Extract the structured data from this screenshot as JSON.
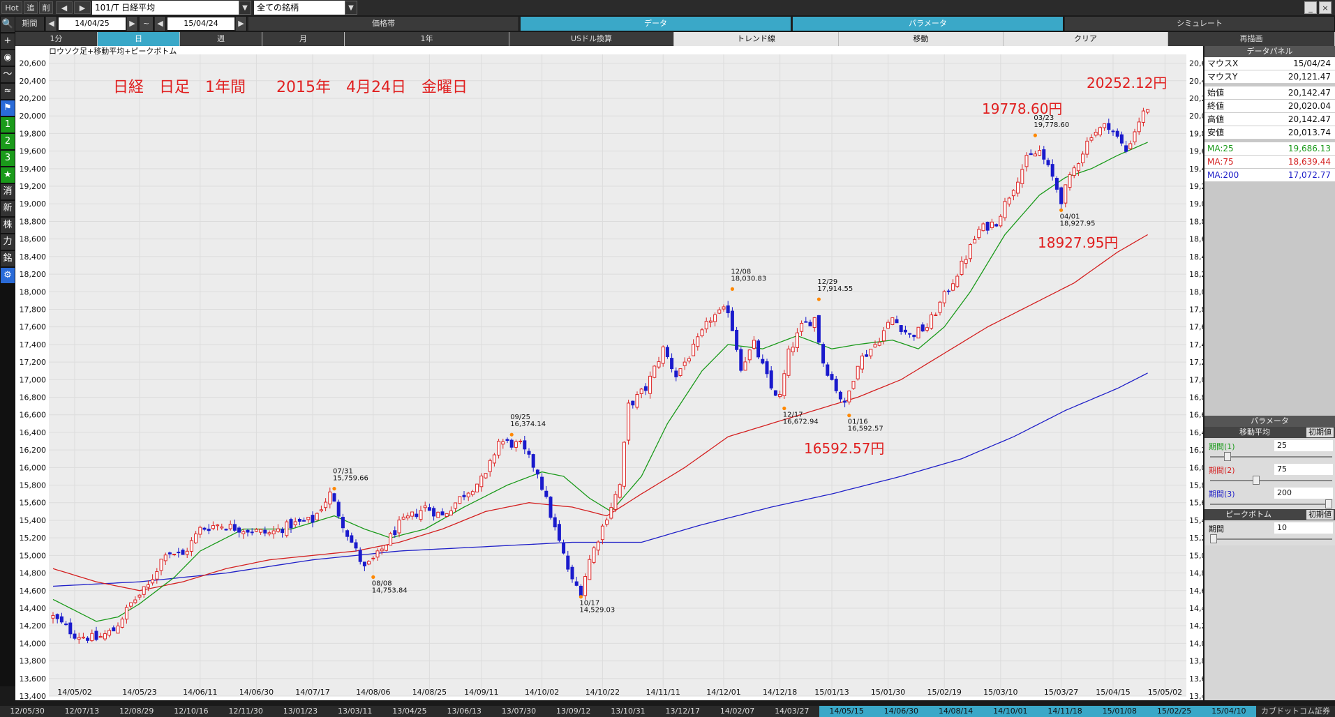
{
  "toolbar": {
    "hot_label": "Hot",
    "add_label": "追",
    "del_label": "削",
    "prev_icon": "prev-arrow-icon",
    "next_icon": "next-arrow-icon",
    "symbol_value": "101/T 日経平均",
    "group_value": "全ての銘柄"
  },
  "period_row": {
    "label": "期間",
    "start_date": "14/04/25",
    "tilde": "~",
    "end_date": "15/04/24",
    "tabs": [
      "価格帯",
      "データ",
      "パラメータ",
      "シミュレート"
    ]
  },
  "interval_row": {
    "buttons": [
      "1分",
      "日",
      "週",
      "月",
      "1年",
      "USドル換算",
      "トレンド線",
      "移動",
      "クリア",
      "再描画"
    ],
    "selected": "日"
  },
  "left_toolbar": {
    "items": [
      {
        "icon": "search-icon",
        "glyph": "🔍"
      },
      {
        "icon": "crosshair-icon",
        "glyph": "+"
      },
      {
        "icon": "camera-icon",
        "glyph": "◉"
      },
      {
        "icon": "line-chart-icon",
        "glyph": "〜"
      },
      {
        "icon": "multi-line-icon",
        "glyph": "≈"
      },
      {
        "icon": "flag-icon",
        "glyph": "⚑"
      },
      {
        "icon": "number-1-icon",
        "glyph": "1"
      },
      {
        "icon": "number-2-icon",
        "glyph": "2"
      },
      {
        "icon": "number-3-icon",
        "glyph": "3"
      },
      {
        "icon": "star-icon",
        "glyph": "★"
      },
      {
        "icon": "erase-icon",
        "glyph": "消"
      },
      {
        "icon": "new-icon",
        "glyph": "新"
      },
      {
        "icon": "stock-icon",
        "glyph": "株"
      },
      {
        "icon": "power-icon",
        "glyph": "力"
      },
      {
        "icon": "brand-icon",
        "glyph": "銘"
      },
      {
        "icon": "gear-icon",
        "glyph": "⚙"
      }
    ]
  },
  "chart_header": "ロウソク足+移動平均+ピークボトム",
  "annotations": {
    "title": "日経　日足　1年間　　2015年　4月24日　金曜日",
    "high_label": "20252.12円",
    "peak_label": "19778.60円",
    "low1_label": "18927.95円",
    "low2_label": "16592.57円"
  },
  "chart_data": {
    "type": "candlestick",
    "ylim": [
      13400,
      20700
    ],
    "yticks": [
      13400,
      13600,
      13800,
      14000,
      14200,
      14400,
      14600,
      14800,
      15000,
      15200,
      15400,
      15600,
      15800,
      16000,
      16200,
      16400,
      16600,
      16800,
      17000,
      17200,
      17400,
      17600,
      17800,
      18000,
      18200,
      18400,
      18600,
      18800,
      19000,
      19200,
      19400,
      19600,
      19800,
      20000,
      20200,
      20400,
      20600
    ],
    "xticks": [
      {
        "label": "14/05/02",
        "i": 5
      },
      {
        "label": "14/05/23",
        "i": 20
      },
      {
        "label": "14/06/11",
        "i": 34
      },
      {
        "label": "14/06/30",
        "i": 47
      },
      {
        "label": "14/07/17",
        "i": 60
      },
      {
        "label": "14/08/06",
        "i": 74
      },
      {
        "label": "14/08/25",
        "i": 87
      },
      {
        "label": "14/09/11",
        "i": 99
      },
      {
        "label": "14/10/02",
        "i": 113
      },
      {
        "label": "14/10/22",
        "i": 127
      },
      {
        "label": "14/11/11",
        "i": 141
      },
      {
        "label": "14/12/01",
        "i": 155
      },
      {
        "label": "14/12/18",
        "i": 168
      },
      {
        "label": "15/01/13",
        "i": 180
      },
      {
        "label": "15/01/30",
        "i": 193
      },
      {
        "label": "15/02/19",
        "i": 206
      },
      {
        "label": "15/03/10",
        "i": 219
      },
      {
        "label": "15/03/27",
        "i": 233
      },
      {
        "label": "15/04/15",
        "i": 245
      },
      {
        "label": "15/05/02",
        "i": 257
      }
    ],
    "n_bars": 262,
    "anchors": [
      [
        0,
        14300
      ],
      [
        5,
        14100
      ],
      [
        10,
        14050
      ],
      [
        14,
        14150
      ],
      [
        18,
        14450
      ],
      [
        22,
        14650
      ],
      [
        26,
        15050
      ],
      [
        30,
        15000
      ],
      [
        34,
        15300
      ],
      [
        38,
        15350
      ],
      [
        44,
        15300
      ],
      [
        50,
        15250
      ],
      [
        55,
        15350
      ],
      [
        60,
        15400
      ],
      [
        64,
        15700
      ],
      [
        68,
        15250
      ],
      [
        72,
        14850
      ],
      [
        75,
        15000
      ],
      [
        80,
        15350
      ],
      [
        86,
        15550
      ],
      [
        90,
        15450
      ],
      [
        95,
        15700
      ],
      [
        100,
        15900
      ],
      [
        103,
        16300
      ],
      [
        108,
        16250
      ],
      [
        112,
        15950
      ],
      [
        116,
        15300
      ],
      [
        120,
        14700
      ],
      [
        122,
        14600
      ],
      [
        124,
        14950
      ],
      [
        128,
        15450
      ],
      [
        131,
        15800
      ],
      [
        133,
        16700
      ],
      [
        137,
        16900
      ],
      [
        141,
        17350
      ],
      [
        144,
        17050
      ],
      [
        148,
        17350
      ],
      [
        152,
        17700
      ],
      [
        156,
        17800
      ],
      [
        159,
        17150
      ],
      [
        162,
        17400
      ],
      [
        166,
        16900
      ],
      [
        168,
        16800
      ],
      [
        170,
        17300
      ],
      [
        173,
        17600
      ],
      [
        176,
        17700
      ],
      [
        178,
        17200
      ],
      [
        181,
        16900
      ],
      [
        183,
        16700
      ],
      [
        186,
        17200
      ],
      [
        190,
        17400
      ],
      [
        194,
        17700
      ],
      [
        198,
        17500
      ],
      [
        202,
        17600
      ],
      [
        206,
        17950
      ],
      [
        210,
        18300
      ],
      [
        214,
        18700
      ],
      [
        218,
        18800
      ],
      [
        222,
        19200
      ],
      [
        225,
        19500
      ],
      [
        228,
        19600
      ],
      [
        231,
        19300
      ],
      [
        233,
        19050
      ],
      [
        236,
        19400
      ],
      [
        240,
        19800
      ],
      [
        244,
        19900
      ],
      [
        248,
        19600
      ],
      [
        251,
        19950
      ],
      [
        253,
        20100
      ]
    ],
    "ma25": [
      [
        0,
        14500
      ],
      [
        10,
        14250
      ],
      [
        15,
        14300
      ],
      [
        20,
        14450
      ],
      [
        28,
        14750
      ],
      [
        34,
        15050
      ],
      [
        44,
        15300
      ],
      [
        55,
        15300
      ],
      [
        65,
        15450
      ],
      [
        72,
        15300
      ],
      [
        78,
        15200
      ],
      [
        86,
        15300
      ],
      [
        95,
        15550
      ],
      [
        105,
        15800
      ],
      [
        113,
        15950
      ],
      [
        118,
        15900
      ],
      [
        124,
        15650
      ],
      [
        129,
        15500
      ],
      [
        136,
        15900
      ],
      [
        142,
        16500
      ],
      [
        150,
        17100
      ],
      [
        156,
        17400
      ],
      [
        164,
        17350
      ],
      [
        172,
        17500
      ],
      [
        180,
        17350
      ],
      [
        186,
        17400
      ],
      [
        194,
        17450
      ],
      [
        200,
        17350
      ],
      [
        206,
        17600
      ],
      [
        212,
        18000
      ],
      [
        220,
        18650
      ],
      [
        228,
        19100
      ],
      [
        234,
        19300
      ],
      [
        240,
        19400
      ],
      [
        246,
        19550
      ],
      [
        253,
        19700
      ]
    ],
    "ma75": [
      [
        0,
        14850
      ],
      [
        10,
        14700
      ],
      [
        20,
        14600
      ],
      [
        30,
        14700
      ],
      [
        40,
        14850
      ],
      [
        50,
        14950
      ],
      [
        60,
        15000
      ],
      [
        70,
        15050
      ],
      [
        80,
        15150
      ],
      [
        90,
        15300
      ],
      [
        100,
        15500
      ],
      [
        110,
        15600
      ],
      [
        120,
        15550
      ],
      [
        128,
        15450
      ],
      [
        136,
        15700
      ],
      [
        146,
        16000
      ],
      [
        156,
        16350
      ],
      [
        166,
        16500
      ],
      [
        176,
        16650
      ],
      [
        186,
        16800
      ],
      [
        196,
        17000
      ],
      [
        206,
        17300
      ],
      [
        216,
        17600
      ],
      [
        226,
        17850
      ],
      [
        236,
        18100
      ],
      [
        246,
        18450
      ],
      [
        253,
        18650
      ]
    ],
    "ma200": [
      [
        0,
        14650
      ],
      [
        20,
        14700
      ],
      [
        40,
        14800
      ],
      [
        60,
        14950
      ],
      [
        80,
        15050
      ],
      [
        100,
        15100
      ],
      [
        120,
        15150
      ],
      [
        136,
        15150
      ],
      [
        150,
        15350
      ],
      [
        166,
        15550
      ],
      [
        180,
        15700
      ],
      [
        196,
        15900
      ],
      [
        210,
        16100
      ],
      [
        222,
        16350
      ],
      [
        234,
        16650
      ],
      [
        246,
        16900
      ],
      [
        253,
        17075
      ]
    ],
    "peaks": [
      {
        "i": 65,
        "date": "07/31",
        "value": "15,759.66",
        "price": 15759.66,
        "pos": "top"
      },
      {
        "i": 74,
        "date": "08/08",
        "value": "14,753.84",
        "price": 14753.84,
        "pos": "bottom"
      },
      {
        "i": 106,
        "date": "09/25",
        "value": "16,374.14",
        "price": 16374.14,
        "pos": "top"
      },
      {
        "i": 122,
        "date": "10/17",
        "value": "14,529.03",
        "price": 14529.03,
        "pos": "bottom"
      },
      {
        "i": 157,
        "date": "12/08",
        "value": "18,030.83",
        "price": 18030.83,
        "pos": "top"
      },
      {
        "i": 169,
        "date": "12/17",
        "value": "16,672.94",
        "price": 16672.94,
        "pos": "bottom"
      },
      {
        "i": 177,
        "date": "12/29",
        "value": "17,914.55",
        "price": 17914.55,
        "pos": "top"
      },
      {
        "i": 184,
        "date": "01/16",
        "value": "16,592.57",
        "price": 16592.57,
        "pos": "bottom"
      },
      {
        "i": 227,
        "date": "03/23",
        "value": "19,778.60",
        "price": 19778.6,
        "pos": "top"
      },
      {
        "i": 233,
        "date": "04/01",
        "value": "18,927.95",
        "price": 18927.95,
        "pos": "bottom"
      }
    ],
    "colors": {
      "up": "#dd2222",
      "down": "#1a1acc",
      "ma25": "#1a9a1a",
      "ma75": "#d42020",
      "ma200": "#2020c8",
      "grid": "#dcdcdc",
      "peak_marker": "#ff8800"
    }
  },
  "data_panel": {
    "title": "データパネル",
    "rows": [
      {
        "k": "マウスX",
        "v": "15/04/24"
      },
      {
        "k": "マウスY",
        "v": "20,121.47"
      },
      {
        "k": "始値",
        "v": "20,142.47"
      },
      {
        "k": "終値",
        "v": "20,020.04"
      },
      {
        "k": "高値",
        "v": "20,142.47"
      },
      {
        "k": "安値",
        "v": "20,013.74"
      },
      {
        "k": "MA:25",
        "v": "19,686.13"
      },
      {
        "k": "MA:75",
        "v": "18,639.44"
      },
      {
        "k": "MA:200",
        "v": "17,072.77"
      }
    ]
  },
  "param_panel": {
    "title": "パラメータ",
    "ma_section": "移動平均",
    "ma_reset": "初期値",
    "params": [
      {
        "label": "期間(1)",
        "value": "25",
        "color": "#1a9a1a",
        "knob": 0.12
      },
      {
        "label": "期間(2)",
        "value": "75",
        "color": "#d42020",
        "knob": 0.37
      },
      {
        "label": "期間(3)",
        "value": "200",
        "color": "#2020c8",
        "knob": 1.0
      }
    ],
    "pb_section": "ピークボトム",
    "pb_reset": "初期値",
    "pb_param": {
      "label": "期間",
      "value": "10",
      "knob": 0.0
    }
  },
  "bottom_dates": [
    "12/05/30",
    "12/07/13",
    "12/08/29",
    "12/10/16",
    "12/11/30",
    "13/01/23",
    "13/03/11",
    "13/04/25",
    "13/06/13",
    "13/07/30",
    "13/09/12",
    "13/10/31",
    "13/12/17",
    "14/02/07",
    "14/03/27",
    "14/05/15",
    "14/06/30",
    "14/08/14",
    "14/10/01",
    "14/11/18",
    "15/01/08",
    "15/02/25",
    "15/04/10"
  ],
  "bottom_brand": "カブドットコム証券"
}
